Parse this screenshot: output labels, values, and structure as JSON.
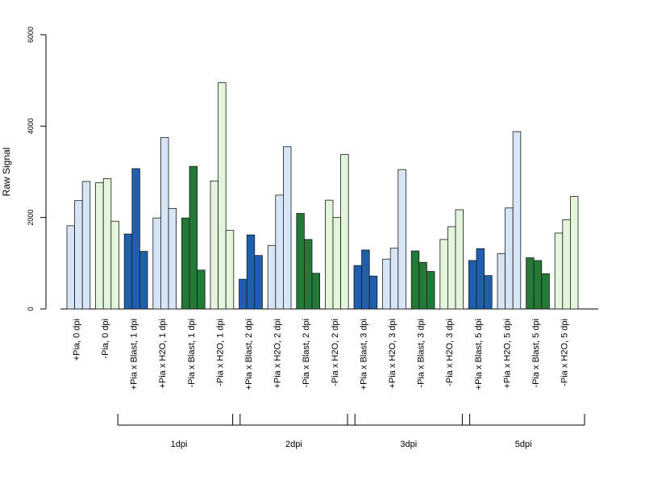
{
  "chart_data": {
    "type": "bar",
    "ylabel": "Raw Signal",
    "ylim": [
      0,
      6000
    ],
    "yticks": [
      "0",
      "2000",
      "4000",
      "6000"
    ],
    "grid": false,
    "legend": "none",
    "colors": {
      "light_blue": "#d6e6f7",
      "dark_blue": "#1f5fae",
      "dark_green": "#237a36",
      "light_green": "#e3f5da"
    },
    "categories": [
      "+Pia, 0 dpi",
      "-Pia, 0 dpi",
      "+Pia x Blast, 1 dpi",
      "+Pia x H2O, 1 dpi",
      "-Pia x Blast, 1 dpi",
      "-Pia x H2O, 1 dpi",
      "+Pia x Blast, 2 dpi",
      "+Pia x H2O, 2 dpi",
      "-Pia x Blast, 2 dpi",
      "-Pia x H2O, 2 dpi",
      "+Pia x Blast, 3 dpi",
      "+Pia x H2O, 3 dpi",
      "-Pia x Blast, 3 dpi",
      "-Pia x H2O, 3 dpi",
      "+Pia x Blast, 5 dpi",
      "+Pia x H2O, 5 dpi",
      "-Pia x Blast, 5 dpi",
      "-Pia x H2O, 5 dpi"
    ],
    "category_colors": [
      "light_blue",
      "light_green",
      "dark_blue",
      "light_blue",
      "dark_green",
      "light_green",
      "dark_blue",
      "light_blue",
      "dark_green",
      "light_green",
      "dark_blue",
      "light_blue",
      "dark_green",
      "light_green",
      "dark_blue",
      "light_blue",
      "dark_green",
      "light_green"
    ],
    "values": [
      [
        1820,
        2370,
        2790
      ],
      [
        2760,
        2850,
        1920
      ],
      [
        1640,
        3070,
        1260
      ],
      [
        1990,
        3750,
        2200
      ],
      [
        1990,
        3120,
        850
      ],
      [
        2800,
        4950,
        1720
      ],
      [
        650,
        1620,
        1170
      ],
      [
        1390,
        2490,
        3550
      ],
      [
        2090,
        1520,
        780
      ],
      [
        2380,
        2000,
        3380
      ],
      [
        950,
        1290,
        720
      ],
      [
        1090,
        1330,
        3050
      ],
      [
        1270,
        1020,
        820
      ],
      [
        1520,
        1800,
        2170
      ],
      [
        1060,
        1320,
        730
      ],
      [
        1210,
        2210,
        3880
      ],
      [
        1120,
        1060,
        770
      ],
      [
        1660,
        1950,
        2460
      ]
    ],
    "groups": [
      {
        "label": "1dpi",
        "from": 2,
        "to": 5
      },
      {
        "label": "2dpi",
        "from": 6,
        "to": 9
      },
      {
        "label": "3dpi",
        "from": 10,
        "to": 13
      },
      {
        "label": "5dpi",
        "from": 14,
        "to": 17
      }
    ]
  }
}
